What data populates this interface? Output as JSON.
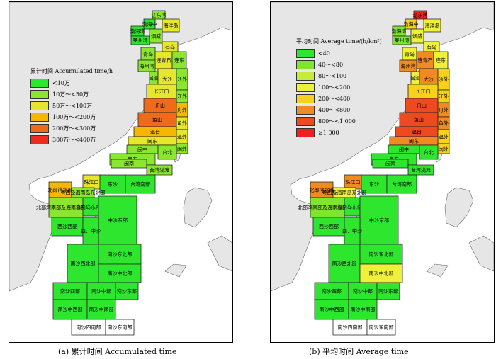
{
  "regions": [
    {
      "id": "liaodongwan",
      "name": "辽东湾",
      "a": "10万-50万",
      "b": "≥1 000"
    },
    {
      "id": "bohai_zhong",
      "name": "渤海中",
      "a": "<10万",
      "b": "200～<400"
    },
    {
      "id": "bohaiwan",
      "name": "渤海湾",
      "a": "<10万",
      "b": "40～<80"
    },
    {
      "id": "laizhouwan",
      "name": "莱州湾",
      "a": "<10万",
      "b": "40～<80"
    },
    {
      "id": "yantai",
      "name": "烟威",
      "a": "10万-50万",
      "b": "100～<200"
    },
    {
      "id": "haiyangdao",
      "name": "海洋岛",
      "a": "50万-100万",
      "b": "100～<200"
    },
    {
      "id": "shidao",
      "name": "石岛",
      "a": "50万-100万",
      "b": "100～<200"
    },
    {
      "id": "qingdao",
      "name": "青岛",
      "a": "10万-50万",
      "b": "100～<200"
    },
    {
      "id": "lianqingshi",
      "name": "连青石",
      "a": "50万-100万",
      "b": "400～<800"
    },
    {
      "id": "haizhouwan",
      "name": "海州湾",
      "a": "10万-50万",
      "b": "400～<800"
    },
    {
      "id": "liandong",
      "name": "连东",
      "a": "10万-50万",
      "b": "100～<200"
    },
    {
      "id": "lvsi",
      "name": "吕泗",
      "a": "10万-50万",
      "b": "100～<200"
    },
    {
      "id": "dasha",
      "name": "大沙",
      "a": "50万-100万",
      "b": "400～<800"
    },
    {
      "id": "shawai",
      "name": "沙外",
      "a": "10万-50万",
      "b": "200～<400"
    },
    {
      "id": "changjiangkou",
      "name": "长江口",
      "a": "50万-100万",
      "b": "200～<400"
    },
    {
      "id": "jiangwai",
      "name": "江外",
      "a": "10万-50万",
      "b": "200～<400"
    },
    {
      "id": "zhoushan",
      "name": "舟山",
      "a": "200万-300万",
      "b": "800～<1 000"
    },
    {
      "id": "zhouwai",
      "name": "舟外",
      "a": "100万-200万",
      "b": "400～<800"
    },
    {
      "id": "yushan",
      "name": "鱼山",
      "a": "200万-300万",
      "b": "800～<1 000"
    },
    {
      "id": "yuwai",
      "name": "鱼外",
      "a": "50万-100万",
      "b": "400～<800"
    },
    {
      "id": "wentai",
      "name": "温台",
      "a": "100万-200万",
      "b": "800～<1 000"
    },
    {
      "id": "wenwai",
      "name": "温外",
      "a": "50万-100万",
      "b": "200～<400"
    },
    {
      "id": "mindong",
      "name": "闽东",
      "a": "50万-100万",
      "b": "400～<800"
    },
    {
      "id": "minwai",
      "name": "闽外",
      "a": "10万-50万",
      "b": "200～<400"
    },
    {
      "id": "minzhong",
      "name": "闽中",
      "a": "10万-50万",
      "b": "<40"
    },
    {
      "id": "taibei",
      "name": "台北",
      "a": "10万-50万",
      "b": "<40"
    },
    {
      "id": "yuedong",
      "name": "粤东",
      "a": "10万-50万",
      "b": "<40"
    },
    {
      "id": "minnan",
      "name": "闽南",
      "a": "10万-50万",
      "b": "<40"
    },
    {
      "id": "taiwanqiantan",
      "name": "台湾浅滩",
      "a": "10万-50万",
      "b": "<40"
    },
    {
      "id": "zhujiangkou",
      "name": "珠江口",
      "a": "50万-100万",
      "b": "400～<800"
    },
    {
      "id": "dongsha",
      "name": "东沙",
      "a": "<10万",
      "b": "<40"
    },
    {
      "id": "taiwannanbu",
      "name": "台湾南部",
      "a": "<10万",
      "b": "<40"
    },
    {
      "id": "beibuwanbei",
      "name": "北部湾北部",
      "a": "100万-200万",
      "b": "400～<800"
    },
    {
      "id": "yuexi",
      "name": "粤西及海南岛东北部",
      "a": "10万-50万",
      "b": "100～<200"
    },
    {
      "id": "beibuwannan",
      "name": "北部湾南部及海南岛西南部",
      "a": "10万-50万",
      "b": "40～<80"
    },
    {
      "id": "hainandongnan",
      "name": "海南岛东南部",
      "a": "<10万",
      "b": "<40"
    },
    {
      "id": "zhongshadongbu",
      "name": "中沙东部",
      "a": "<10万",
      "b": "<40"
    },
    {
      "id": "xishaxibu",
      "name": "西沙西部",
      "a": "<10万",
      "b": "<40"
    },
    {
      "id": "xizhongsha",
      "name": "西、中沙",
      "a": "<10万",
      "b": "<40"
    },
    {
      "id": "nanshaxibei",
      "name": "南沙西北部",
      "a": "<10万",
      "b": "<40"
    },
    {
      "id": "nanshadongbei",
      "name": "南沙东北部",
      "a": "<10万",
      "b": "<40"
    },
    {
      "id": "nanshazhongbei",
      "name": "南沙中北部",
      "a": "<10万",
      "b": "100～<200"
    },
    {
      "id": "nanshaxibu",
      "name": "南沙西部",
      "a": "<10万",
      "b": "<40"
    },
    {
      "id": "nanshazhongbu",
      "name": "南沙中部",
      "a": "<10万",
      "b": "<40"
    },
    {
      "id": "nanshadongbu",
      "name": "南沙东部",
      "a": "<10万",
      "b": "<40"
    },
    {
      "id": "nanshazhongxibu",
      "name": "南沙中西部",
      "a": "<10万",
      "b": "<40"
    },
    {
      "id": "nanshazhongnanbu",
      "name": "南沙中南部",
      "a": "<10万",
      "b": "<40"
    },
    {
      "id": "nanshaxinanbu",
      "name": "南沙西南部",
      "a": "none",
      "b": "none"
    },
    {
      "id": "nanshadongnanbu",
      "name": "南沙东南部",
      "a": "none",
      "b": "none"
    }
  ],
  "legend_a": {
    "title": "累计时间 Accumulated time/h",
    "items": [
      {
        "key": "<10万",
        "label": "<10万",
        "color": "#2ee62e"
      },
      {
        "key": "10万-50万",
        "label": "10万～<50万",
        "color": "#8ae62e"
      },
      {
        "key": "50万-100万",
        "label": "50万～<100万",
        "color": "#e6e62e"
      },
      {
        "key": "100万-200万",
        "label": "100万～<200万",
        "color": "#f5b800"
      },
      {
        "key": "200万-300万",
        "label": "200万～<300万",
        "color": "#ef6a1a"
      },
      {
        "key": "300万-400万",
        "label": "300万～<400万",
        "color": "#ee2b1f"
      }
    ]
  },
  "legend_b": {
    "title": "平均时间 Average time/(h/km²)",
    "items": [
      {
        "key": "<40",
        "label": "<40",
        "color": "#2ee62e"
      },
      {
        "key": "40～<80",
        "label": "40～<80",
        "color": "#7ee62e"
      },
      {
        "key": "80～<100",
        "label": "80～<100",
        "color": "#c4ec3c"
      },
      {
        "key": "100～<200",
        "label": "100～<200",
        "color": "#eef03a"
      },
      {
        "key": "200～<400",
        "label": "200～<400",
        "color": "#f6d21a"
      },
      {
        "key": "400～<800",
        "label": "400～<800",
        "color": "#f08a22"
      },
      {
        "key": "800～<1 000",
        "label": "800～<1 000",
        "color": "#ee4a1f"
      },
      {
        "key": "≥1 000",
        "label": "≥1 000",
        "color": "#ee1f1f"
      }
    ]
  },
  "captions": {
    "a": "(a)  累计时间 Accumulated time",
    "b": "(b)  平均时间 Average time"
  },
  "colors": {
    "land": "#e6e6e6",
    "sea": "#ffffff",
    "none": "#ffffff"
  }
}
